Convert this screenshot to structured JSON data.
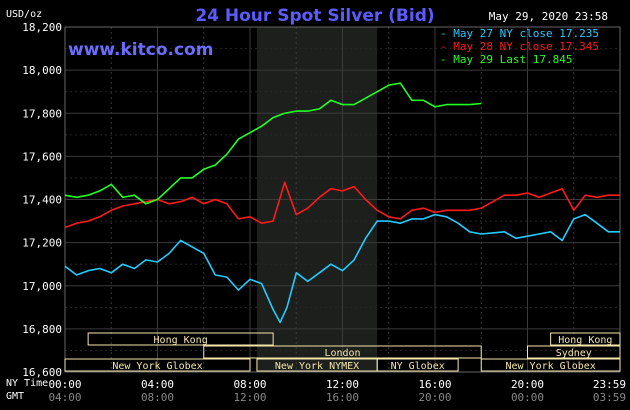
{
  "chart_data": {
    "type": "line",
    "title": "24 Hour Spot Silver (Bid)",
    "timestamp": "May 29, 2020 23:58",
    "brand": "www.kitco.com",
    "unit_label": "USD/oz",
    "ylim": [
      16600,
      18200
    ],
    "y_ticks": [
      "16,600",
      "16,800",
      "17,000",
      "17,200",
      "17,400",
      "17,600",
      "17,800",
      "18,000",
      "18,200"
    ],
    "x_row_labels": [
      "NY Time",
      "GMT"
    ],
    "x_ticks_ny": [
      "00:00",
      "04:00",
      "08:00",
      "12:00",
      "16:00",
      "20:00",
      "23:59"
    ],
    "x_ticks_gmt": [
      "04:00",
      "08:00",
      "12:00",
      "16:00",
      "20:00",
      "00:00",
      "03:59"
    ],
    "grid": true,
    "legend_position": "top-right",
    "colors": {
      "cyan": "#22ccff",
      "red": "#ff1a1a",
      "green": "#22ff22",
      "background": "#000000",
      "shade": "#1c1f1c",
      "session": "#f5e6aa"
    },
    "series": [
      {
        "name": "May 27 NY close 17.235",
        "color": "#22ccff",
        "x": [
          0,
          0.5,
          1,
          1.5,
          2,
          2.5,
          3,
          3.5,
          4,
          4.5,
          5,
          5.5,
          6,
          6.5,
          7,
          7.5,
          8,
          8.5,
          9,
          9.3,
          9.6,
          10,
          10.5,
          11,
          11.5,
          12,
          12.5,
          13,
          13.5,
          14,
          14.5,
          15,
          15.5,
          16,
          16.5,
          17,
          17.5,
          18,
          18.5,
          19,
          19.5,
          20,
          20.5,
          21,
          21.5,
          22,
          22.5,
          23,
          23.5,
          24
        ],
        "values": [
          17090,
          17050,
          17070,
          17080,
          17060,
          17100,
          17080,
          17120,
          17110,
          17150,
          17210,
          17180,
          17150,
          17050,
          17040,
          16980,
          17030,
          17010,
          16890,
          16830,
          16900,
          17060,
          17020,
          17060,
          17100,
          17070,
          17120,
          17220,
          17300,
          17300,
          17290,
          17310,
          17310,
          17330,
          17320,
          17290,
          17250,
          17240,
          17245,
          17250,
          17220,
          17230,
          17240,
          17250,
          17210,
          17310,
          17330,
          17290,
          17250,
          17250
        ]
      },
      {
        "name": "May 28 NY close 17.345",
        "color": "#ff1a1a",
        "x": [
          0,
          0.5,
          1,
          1.5,
          2,
          2.5,
          3,
          3.5,
          4,
          4.5,
          5,
          5.5,
          6,
          6.5,
          7,
          7.5,
          8,
          8.5,
          9,
          9.5,
          10,
          10.5,
          11,
          11.5,
          12,
          12.5,
          13,
          13.5,
          14,
          14.5,
          15,
          15.5,
          16,
          16.5,
          17,
          17.5,
          18,
          18.5,
          19,
          19.5,
          20,
          20.5,
          21,
          21.5,
          22,
          22.5,
          23,
          23.5,
          24
        ],
        "values": [
          17270,
          17290,
          17300,
          17320,
          17350,
          17370,
          17380,
          17390,
          17400,
          17380,
          17390,
          17410,
          17380,
          17400,
          17380,
          17310,
          17320,
          17290,
          17300,
          17480,
          17330,
          17360,
          17410,
          17450,
          17440,
          17460,
          17400,
          17350,
          17320,
          17310,
          17350,
          17360,
          17340,
          17350,
          17350,
          17350,
          17360,
          17390,
          17420,
          17420,
          17430,
          17410,
          17430,
          17450,
          17350,
          17420,
          17410,
          17420,
          17420
        ]
      },
      {
        "name": "May 29 Last 17.845",
        "color": "#22ff22",
        "x": [
          0,
          0.5,
          1,
          1.5,
          2,
          2.5,
          3,
          3.5,
          4,
          4.5,
          5,
          5.5,
          6,
          6.5,
          7,
          7.5,
          8,
          8.5,
          9,
          9.5,
          10,
          10.5,
          11,
          11.5,
          12,
          12.5,
          13,
          13.5,
          14,
          14.5,
          15,
          15.5,
          16,
          16.5,
          17,
          17.5,
          18
        ],
        "values": [
          17420,
          17410,
          17420,
          17440,
          17470,
          17410,
          17420,
          17380,
          17400,
          17450,
          17500,
          17500,
          17540,
          17560,
          17610,
          17680,
          17710,
          17740,
          17780,
          17800,
          17810,
          17810,
          17820,
          17860,
          17840,
          17840,
          17870,
          17900,
          17930,
          17940,
          17860,
          17860,
          17830,
          17840,
          17840,
          17840,
          17845
        ]
      }
    ],
    "sessions": [
      {
        "label": "Hong Kong",
        "row": 1,
        "start": 1,
        "end": 9
      },
      {
        "label": "London",
        "row": 2,
        "start": 6,
        "end": 18
      },
      {
        "label": "New York Globex",
        "row": 3,
        "start": 0,
        "end": 8
      },
      {
        "label": "New York NYMEX",
        "row": 3,
        "start": 8.3,
        "end": 13.5
      },
      {
        "label": "NY Globex",
        "row": 3,
        "start": 13.5,
        "end": 17
      },
      {
        "label": "Hong Kong",
        "row": 1,
        "start": 21,
        "end": 24
      },
      {
        "label": "Sydney",
        "row": 2,
        "start": 20,
        "end": 24
      },
      {
        "label": "New York Globex",
        "row": 3,
        "start": 18,
        "end": 24
      }
    ],
    "shaded_hours": [
      8.3,
      13.5
    ]
  }
}
